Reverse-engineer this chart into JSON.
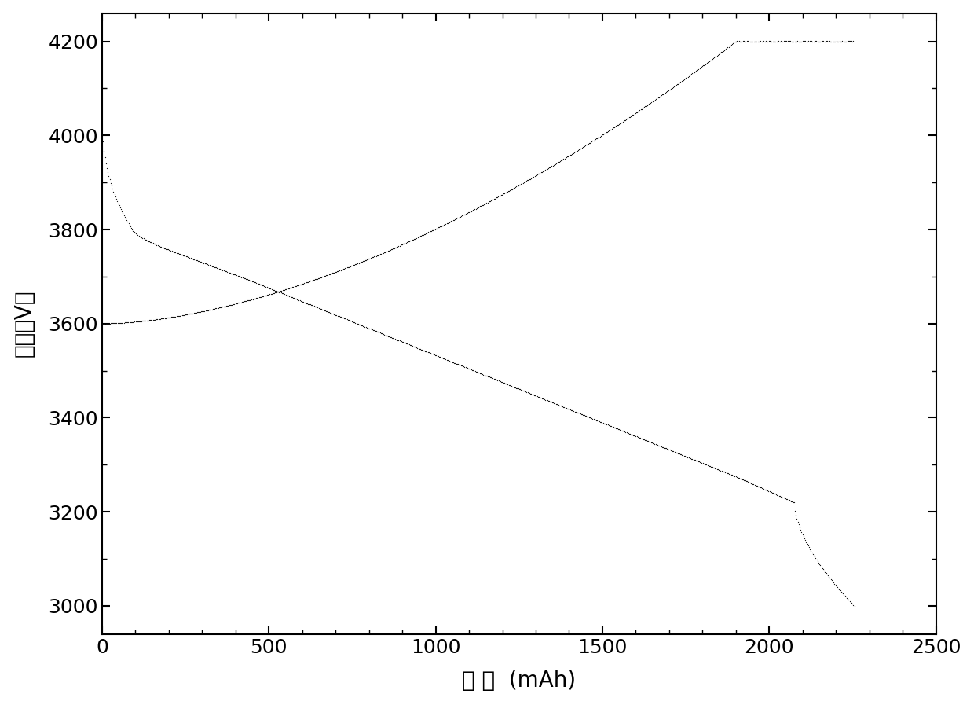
{
  "xlabel": "容 量  (mAh)",
  "ylabel": "电压（V）",
  "xlim": [
    0,
    2500
  ],
  "ylim": [
    2940,
    4260
  ],
  "xticks": [
    0,
    500,
    1000,
    1500,
    2000,
    2500
  ],
  "yticks": [
    3000,
    3200,
    3400,
    3600,
    3800,
    4000,
    4200
  ],
  "background_color": "#ffffff",
  "line_color": "#111111",
  "xlabel_fontsize": 20,
  "ylabel_fontsize": 20,
  "tick_fontsize": 18
}
